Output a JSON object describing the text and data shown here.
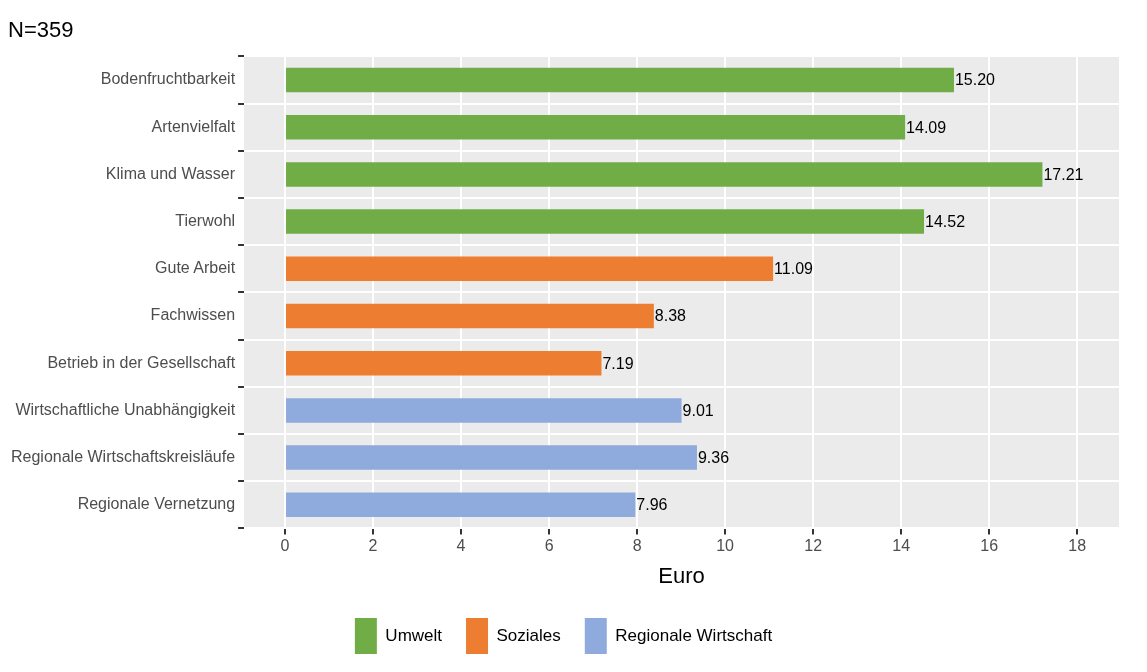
{
  "chart_data": {
    "type": "bar",
    "orientation": "horizontal",
    "stacked": true,
    "title": "N=359",
    "xlabel": "Euro",
    "categories": [
      "Bodenfruchtbarkeit",
      "Artenvielfalt",
      "Klima und Wasser",
      "Tierwohl",
      "Gute Arbeit",
      "Fachwissen",
      "Betrieb in der Gesellschaft",
      "Wirtschaftliche Unabhängigkeit",
      "Regionale Wirtschaftskreisläufe",
      "Regionale Vernetzung"
    ],
    "series": [
      {
        "name": "Umwelt",
        "color": "#70ad47",
        "values": [
          15.2,
          14.09,
          17.21,
          14.52,
          null,
          null,
          null,
          null,
          null,
          null
        ],
        "value_labels": [
          "15.20",
          "14.09",
          "17.21",
          "14.52",
          null,
          null,
          null,
          null,
          null,
          null
        ]
      },
      {
        "name": "Soziales",
        "color": "#ed7d31",
        "values": [
          null,
          null,
          null,
          null,
          11.09,
          8.38,
          7.19,
          null,
          null,
          null
        ],
        "value_labels": [
          null,
          null,
          null,
          null,
          "11.09",
          "8.38",
          "7.19",
          null,
          null,
          null
        ]
      },
      {
        "name": "Regionale Wirtschaft",
        "color": "#8faadc",
        "values": [
          null,
          null,
          null,
          null,
          null,
          null,
          null,
          9.01,
          9.36,
          7.96
        ],
        "value_labels": [
          null,
          null,
          null,
          null,
          null,
          null,
          null,
          "9.01",
          "9.36",
          "7.96"
        ]
      }
    ],
    "xlim": [
      -0.93,
      18.95
    ],
    "xticks": [
      0,
      2,
      4,
      6,
      8,
      10,
      12,
      14,
      16,
      18
    ],
    "grid": true,
    "legend": "bottom"
  }
}
